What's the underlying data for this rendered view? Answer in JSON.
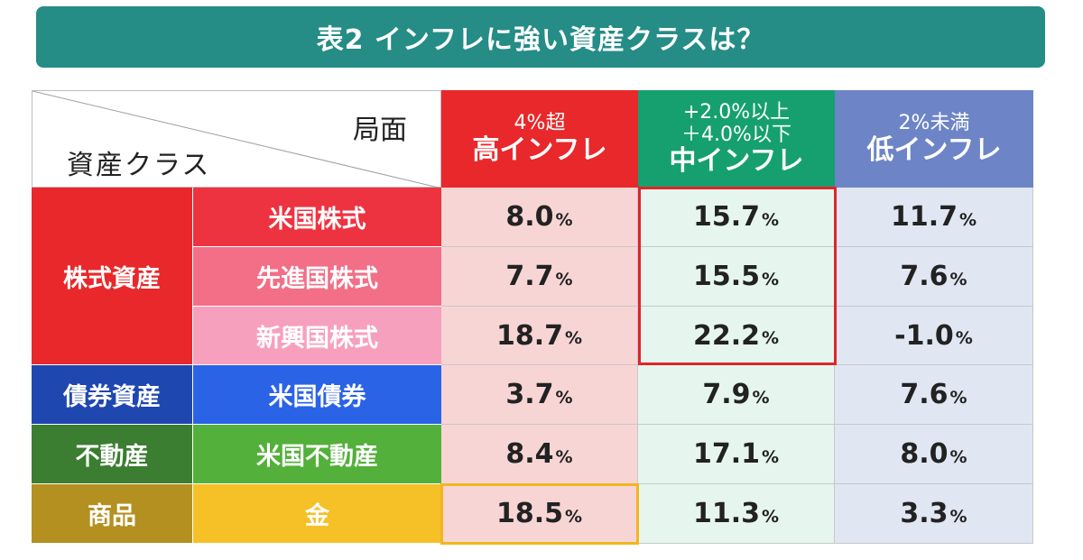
{
  "title": "表2 インフレに強い資産クラスは？",
  "corner": {
    "phase_label": "局面",
    "asset_label": "資産クラス"
  },
  "columns": [
    {
      "line1": "4%超",
      "line2": "高インフレ",
      "color": "#e8282b"
    },
    {
      "line1": "+2.0%以上",
      "line1b": "＋4.0%以下",
      "line2": "中インフレ",
      "color": "#16a06f"
    },
    {
      "line1": "2%未満",
      "line2": "低インフレ",
      "color": "#6d85c6"
    }
  ],
  "categories": [
    {
      "label": "株式資産",
      "color": "#e8282b"
    },
    {
      "label": "債券資産",
      "color": "#1f47b0"
    },
    {
      "label": "不動産",
      "color": "#3b7d31"
    },
    {
      "label": "商品",
      "color": "#b39020"
    }
  ],
  "rows": [
    {
      "name": "米国株式",
      "color": "#ee3340",
      "high": "8.0",
      "mid": "15.7",
      "low": "11.7"
    },
    {
      "name": "先進国株式",
      "color": "#f26f87",
      "high": "7.7",
      "mid": "15.5",
      "low": "7.6"
    },
    {
      "name": "新興国株式",
      "color": "#f7a0bd",
      "high": "18.7",
      "mid": "22.2",
      "low": "-1.0"
    },
    {
      "name": "米国債券",
      "color": "#2b63e6",
      "high": "3.7",
      "mid": "7.9",
      "low": "7.6"
    },
    {
      "name": "米国不動産",
      "color": "#53b03a",
      "high": "8.4",
      "mid": "17.1",
      "low": "8.0"
    },
    {
      "name": "金",
      "color": "#f6c027",
      "high": "18.5",
      "mid": "11.3",
      "low": "3.3"
    }
  ],
  "unit": "%"
}
